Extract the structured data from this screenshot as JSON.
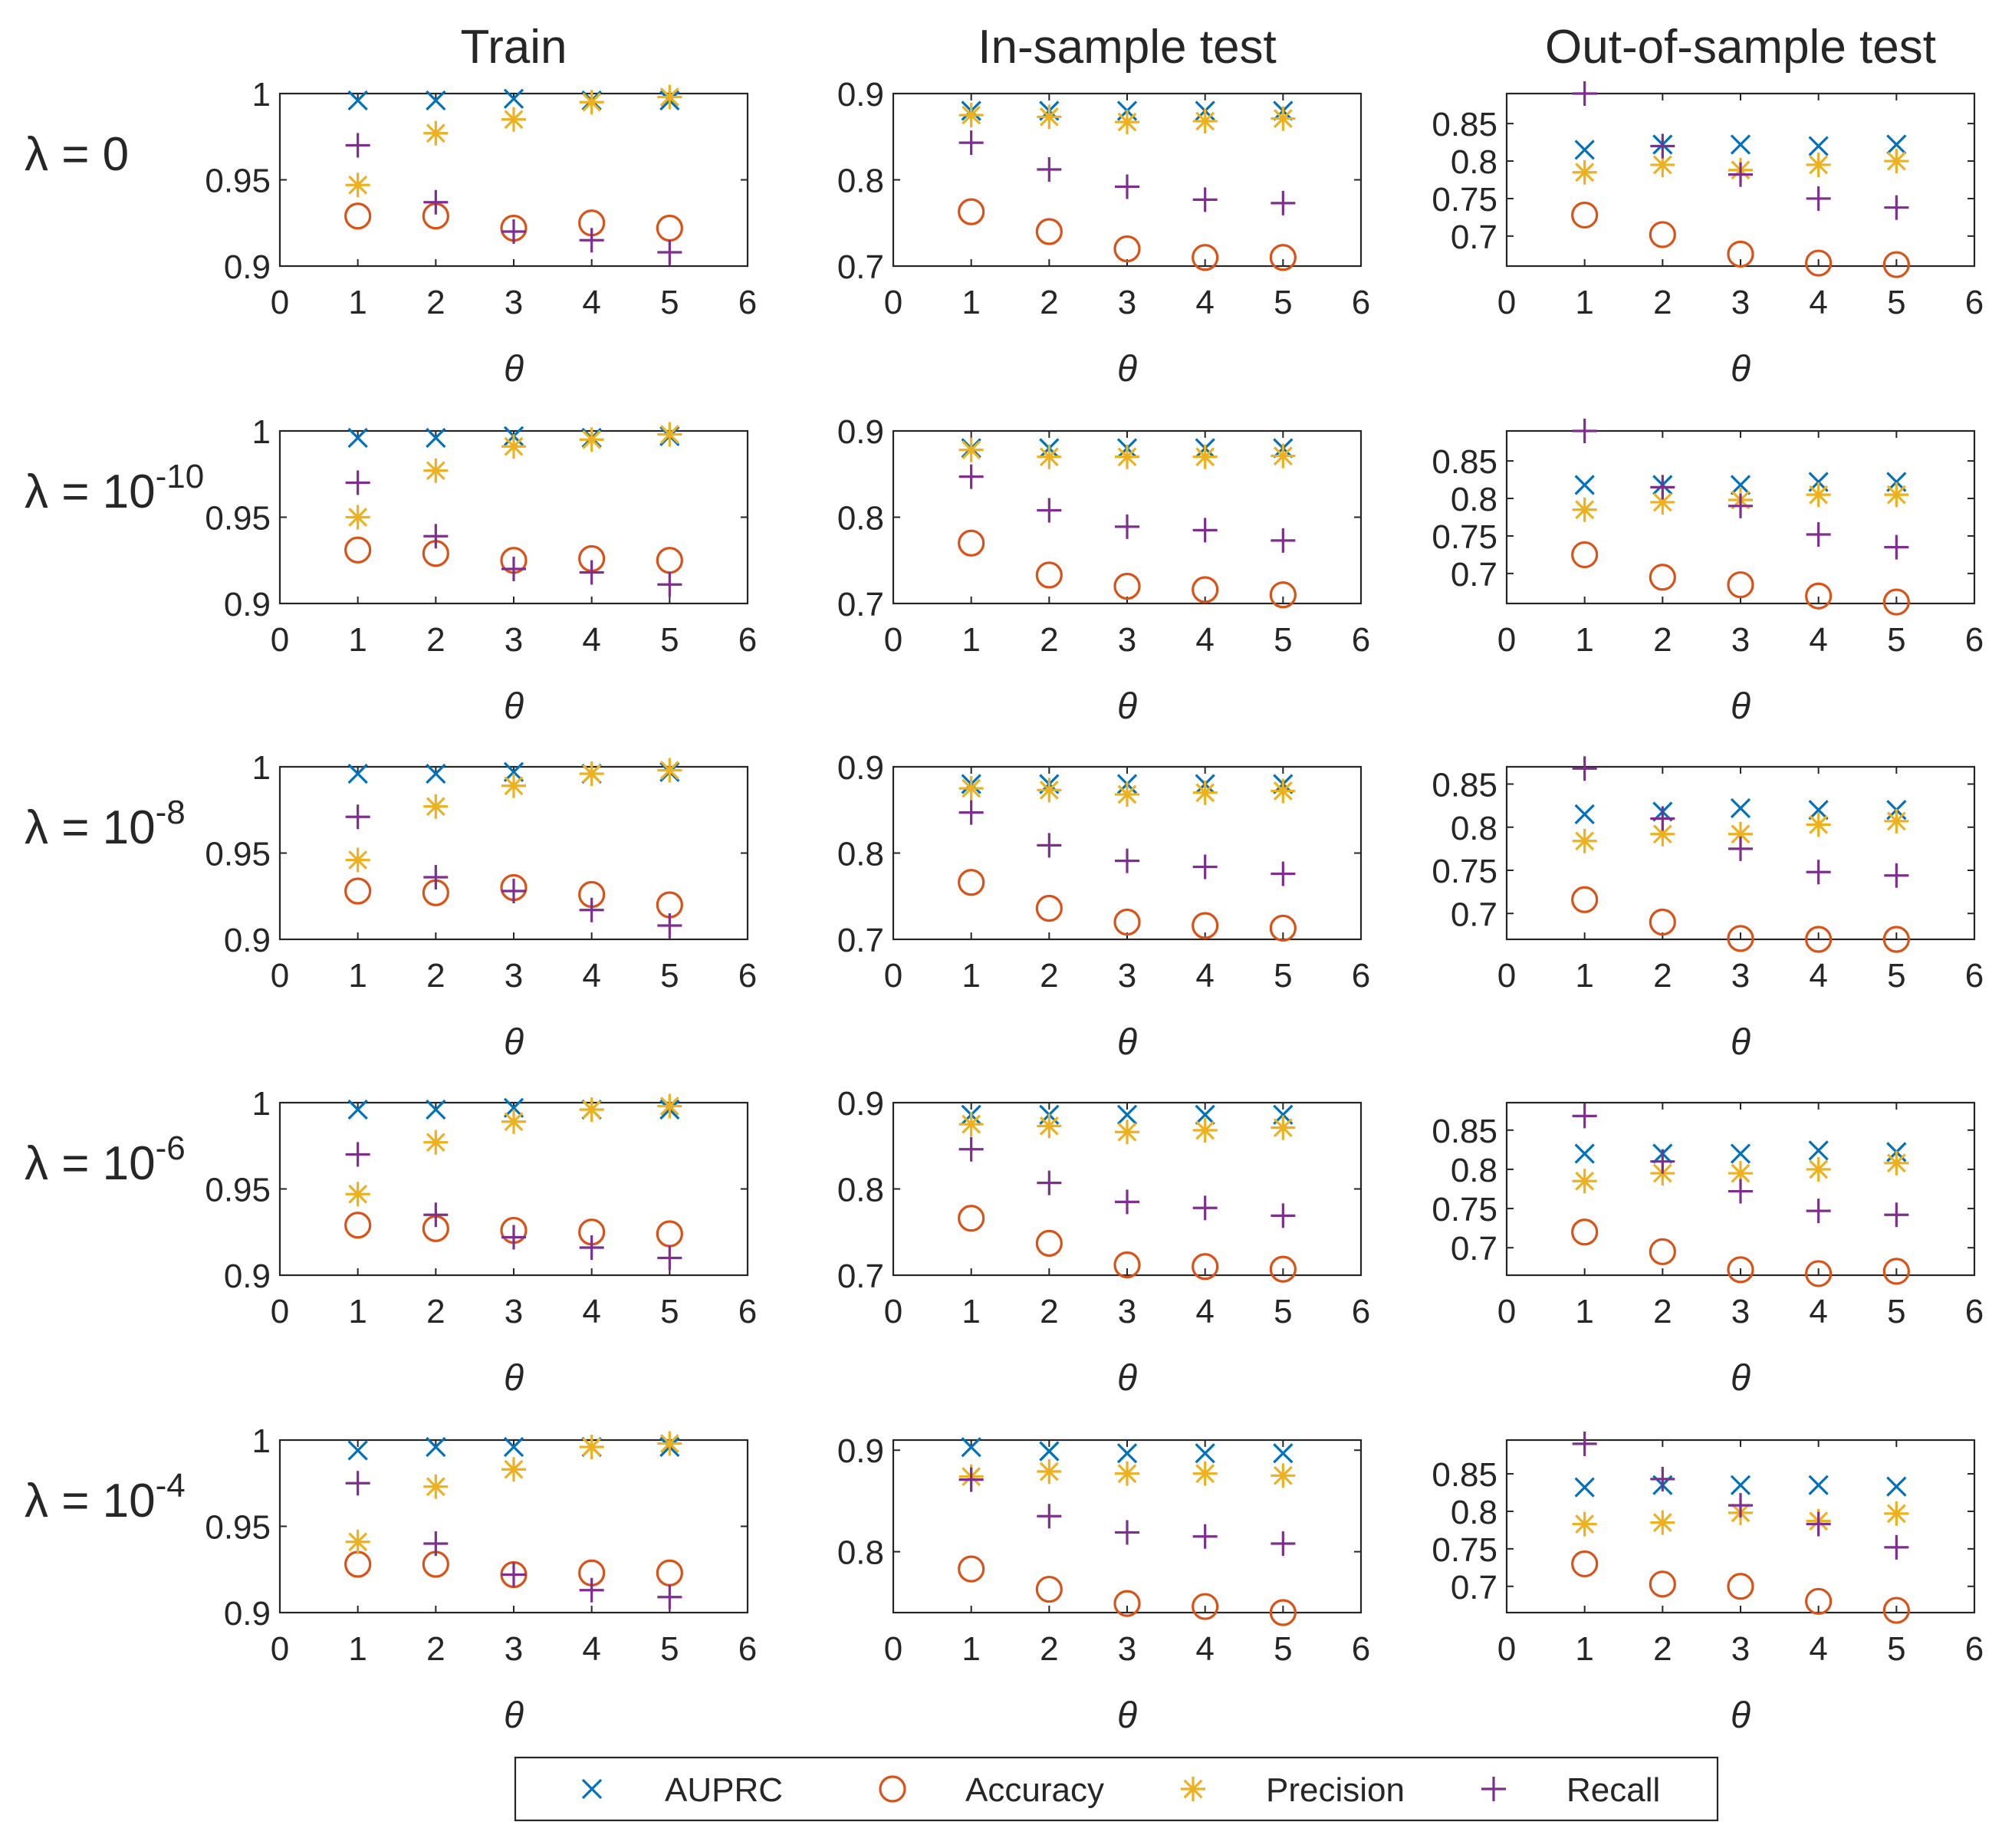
{
  "chart_data": {
    "type": "scatter",
    "columns": [
      "Train",
      "In-sample test",
      "Out-of-sample test"
    ],
    "rows": [
      {
        "prefix": "λ = ",
        "base": "0",
        "exponent": ""
      },
      {
        "prefix": "λ = ",
        "base": "10",
        "exponent": "-10"
      },
      {
        "prefix": "λ = ",
        "base": "10",
        "exponent": "-8"
      },
      {
        "prefix": "λ = ",
        "base": "10",
        "exponent": "-6"
      },
      {
        "prefix": "λ = ",
        "base": "10",
        "exponent": "-4"
      }
    ],
    "xlabel": "θ",
    "x": [
      1,
      2,
      3,
      4,
      5
    ],
    "xlim": [
      0,
      6
    ],
    "xticks": [
      0,
      1,
      2,
      3,
      4,
      5,
      6
    ],
    "legend": {
      "placement": "bottom-center",
      "entries": [
        {
          "key": "auprc",
          "label": "AUPRC",
          "marker": "x",
          "color": "#0072BD"
        },
        {
          "key": "accuracy",
          "label": "Accuracy",
          "marker": "o",
          "color": "#D95319"
        },
        {
          "key": "precision",
          "label": "Precision",
          "marker": "*",
          "color": "#EDB120"
        },
        {
          "key": "recall",
          "label": "Recall",
          "marker": "+",
          "color": "#7E2F8E"
        }
      ]
    },
    "panels": [
      [
        {
          "ylim": [
            0.9,
            1.0
          ],
          "yticks": [
            0.9,
            0.95,
            1
          ],
          "yticklabels": [
            "0.9",
            "0.95",
            "1"
          ],
          "auprc": [
            0.996,
            0.996,
            0.997,
            0.996,
            0.996
          ],
          "accuracy": [
            0.929,
            0.929,
            0.922,
            0.925,
            0.922
          ],
          "precision": [
            0.947,
            0.977,
            0.985,
            0.995,
            0.998
          ],
          "recall": [
            0.97,
            0.937,
            0.92,
            0.915,
            0.908
          ]
        },
        {
          "ylim": [
            0.7,
            0.9
          ],
          "yticks": [
            0.7,
            0.8,
            0.9
          ],
          "yticklabels": [
            "0.7",
            "0.8",
            "0.9"
          ],
          "auprc": [
            0.88,
            0.88,
            0.88,
            0.88,
            0.88
          ],
          "accuracy": [
            0.763,
            0.74,
            0.72,
            0.71,
            0.71
          ],
          "precision": [
            0.875,
            0.873,
            0.867,
            0.868,
            0.871
          ],
          "recall": [
            0.843,
            0.812,
            0.792,
            0.777,
            0.773
          ]
        },
        {
          "ylim": [
            0.66,
            0.89
          ],
          "yticks": [
            0.7,
            0.75,
            0.8,
            0.85
          ],
          "yticklabels": [
            "0.7",
            "0.75",
            "0.8",
            "0.85"
          ],
          "auprc": [
            0.815,
            0.822,
            0.822,
            0.82,
            0.822
          ],
          "accuracy": [
            0.728,
            0.702,
            0.676,
            0.664,
            0.662
          ],
          "precision": [
            0.785,
            0.795,
            0.788,
            0.795,
            0.8
          ],
          "recall": [
            0.89,
            0.82,
            0.782,
            0.75,
            0.738
          ]
        }
      ],
      [
        {
          "ylim": [
            0.9,
            1.0
          ],
          "yticks": [
            0.9,
            0.95,
            1
          ],
          "yticklabels": [
            "0.9",
            "0.95",
            "1"
          ],
          "auprc": [
            0.996,
            0.996,
            0.997,
            0.996,
            0.997
          ],
          "accuracy": [
            0.931,
            0.929,
            0.925,
            0.926,
            0.925
          ],
          "precision": [
            0.95,
            0.977,
            0.991,
            0.995,
            0.998
          ],
          "recall": [
            0.97,
            0.939,
            0.92,
            0.918,
            0.911
          ]
        },
        {
          "ylim": [
            0.7,
            0.9
          ],
          "yticks": [
            0.7,
            0.8,
            0.9
          ],
          "yticklabels": [
            "0.7",
            "0.8",
            "0.9"
          ],
          "auprc": [
            0.88,
            0.88,
            0.88,
            0.88,
            0.88
          ],
          "accuracy": [
            0.77,
            0.733,
            0.72,
            0.716,
            0.71
          ],
          "precision": [
            0.878,
            0.87,
            0.87,
            0.87,
            0.871
          ],
          "recall": [
            0.847,
            0.808,
            0.789,
            0.785,
            0.773
          ]
        },
        {
          "ylim": [
            0.66,
            0.89
          ],
          "yticks": [
            0.7,
            0.75,
            0.8,
            0.85
          ],
          "yticklabels": [
            "0.7",
            "0.75",
            "0.8",
            "0.85"
          ],
          "auprc": [
            0.818,
            0.818,
            0.818,
            0.822,
            0.822
          ],
          "accuracy": [
            0.725,
            0.695,
            0.685,
            0.67,
            0.662
          ],
          "precision": [
            0.785,
            0.795,
            0.798,
            0.805,
            0.805
          ],
          "recall": [
            0.89,
            0.815,
            0.79,
            0.752,
            0.735
          ]
        }
      ],
      [
        {
          "ylim": [
            0.9,
            1.0
          ],
          "yticks": [
            0.9,
            0.95,
            1
          ],
          "yticklabels": [
            "0.9",
            "0.95",
            "1"
          ],
          "auprc": [
            0.996,
            0.996,
            0.997,
            0.996,
            0.997
          ],
          "accuracy": [
            0.928,
            0.927,
            0.93,
            0.926,
            0.92
          ],
          "precision": [
            0.946,
            0.977,
            0.989,
            0.996,
            0.998
          ],
          "recall": [
            0.971,
            0.936,
            0.928,
            0.917,
            0.908
          ]
        },
        {
          "ylim": [
            0.7,
            0.9
          ],
          "yticks": [
            0.7,
            0.8,
            0.9
          ],
          "yticklabels": [
            "0.7",
            "0.8",
            "0.9"
          ],
          "auprc": [
            0.88,
            0.88,
            0.88,
            0.88,
            0.88
          ],
          "accuracy": [
            0.766,
            0.736,
            0.72,
            0.716,
            0.713
          ],
          "precision": [
            0.875,
            0.873,
            0.868,
            0.87,
            0.872
          ],
          "recall": [
            0.847,
            0.809,
            0.791,
            0.784,
            0.776
          ]
        },
        {
          "ylim": [
            0.67,
            0.87
          ],
          "yticks": [
            0.7,
            0.75,
            0.8,
            0.85
          ],
          "yticklabels": [
            "0.7",
            "0.75",
            "0.8",
            "0.85"
          ],
          "auprc": [
            0.815,
            0.818,
            0.822,
            0.82,
            0.82
          ],
          "accuracy": [
            0.716,
            0.69,
            0.671,
            0.67,
            0.67
          ],
          "precision": [
            0.784,
            0.792,
            0.792,
            0.803,
            0.807
          ],
          "recall": [
            0.868,
            0.81,
            0.775,
            0.748,
            0.744
          ]
        }
      ],
      [
        {
          "ylim": [
            0.9,
            1.0
          ],
          "yticks": [
            0.9,
            0.95,
            1
          ],
          "yticklabels": [
            "0.9",
            "0.95",
            "1"
          ],
          "auprc": [
            0.996,
            0.996,
            0.997,
            0.996,
            0.996
          ],
          "accuracy": [
            0.929,
            0.927,
            0.926,
            0.925,
            0.924
          ],
          "precision": [
            0.947,
            0.977,
            0.989,
            0.996,
            0.998
          ],
          "recall": [
            0.97,
            0.935,
            0.922,
            0.916,
            0.91
          ]
        },
        {
          "ylim": [
            0.7,
            0.9
          ],
          "yticks": [
            0.7,
            0.8,
            0.9
          ],
          "yticklabels": [
            "0.7",
            "0.8",
            "0.9"
          ],
          "auprc": [
            0.886,
            0.886,
            0.886,
            0.886,
            0.886
          ],
          "accuracy": [
            0.766,
            0.737,
            0.712,
            0.71,
            0.707
          ],
          "precision": [
            0.875,
            0.873,
            0.866,
            0.868,
            0.871
          ],
          "recall": [
            0.846,
            0.807,
            0.785,
            0.778,
            0.769
          ]
        },
        {
          "ylim": [
            0.665,
            0.885
          ],
          "yticks": [
            0.7,
            0.75,
            0.8,
            0.85
          ],
          "yticklabels": [
            "0.7",
            "0.75",
            "0.8",
            "0.85"
          ],
          "auprc": [
            0.82,
            0.82,
            0.82,
            0.824,
            0.822
          ],
          "accuracy": [
            0.72,
            0.695,
            0.672,
            0.667,
            0.67
          ],
          "precision": [
            0.785,
            0.795,
            0.795,
            0.8,
            0.808
          ],
          "recall": [
            0.868,
            0.81,
            0.772,
            0.747,
            0.742
          ]
        }
      ],
      [
        {
          "ylim": [
            0.9,
            1.0
          ],
          "yticks": [
            0.9,
            0.95,
            1
          ],
          "yticklabels": [
            "0.9",
            "0.95",
            "1"
          ],
          "auprc": [
            0.994,
            0.996,
            0.996,
            0.996,
            0.996
          ],
          "accuracy": [
            0.928,
            0.928,
            0.922,
            0.923,
            0.923
          ],
          "precision": [
            0.941,
            0.973,
            0.983,
            0.996,
            0.998
          ],
          "recall": [
            0.975,
            0.94,
            0.922,
            0.913,
            0.909
          ]
        },
        {
          "ylim": [
            0.74,
            0.91
          ],
          "yticks": [
            0.8,
            0.9
          ],
          "yticklabels": [
            "0.8",
            "0.9"
          ],
          "auprc": [
            0.903,
            0.899,
            0.897,
            0.897,
            0.897
          ],
          "accuracy": [
            0.783,
            0.763,
            0.749,
            0.746,
            0.74
          ],
          "precision": [
            0.874,
            0.879,
            0.877,
            0.877,
            0.875
          ],
          "recall": [
            0.871,
            0.835,
            0.819,
            0.815,
            0.808
          ]
        },
        {
          "ylim": [
            0.665,
            0.895
          ],
          "yticks": [
            0.7,
            0.75,
            0.8,
            0.85
          ],
          "yticklabels": [
            "0.7",
            "0.75",
            "0.8",
            "0.85"
          ],
          "auprc": [
            0.832,
            0.835,
            0.835,
            0.835,
            0.833
          ],
          "accuracy": [
            0.73,
            0.703,
            0.7,
            0.68,
            0.668
          ],
          "precision": [
            0.783,
            0.785,
            0.798,
            0.787,
            0.797
          ],
          "recall": [
            0.89,
            0.843,
            0.808,
            0.783,
            0.752
          ]
        }
      ]
    ]
  }
}
